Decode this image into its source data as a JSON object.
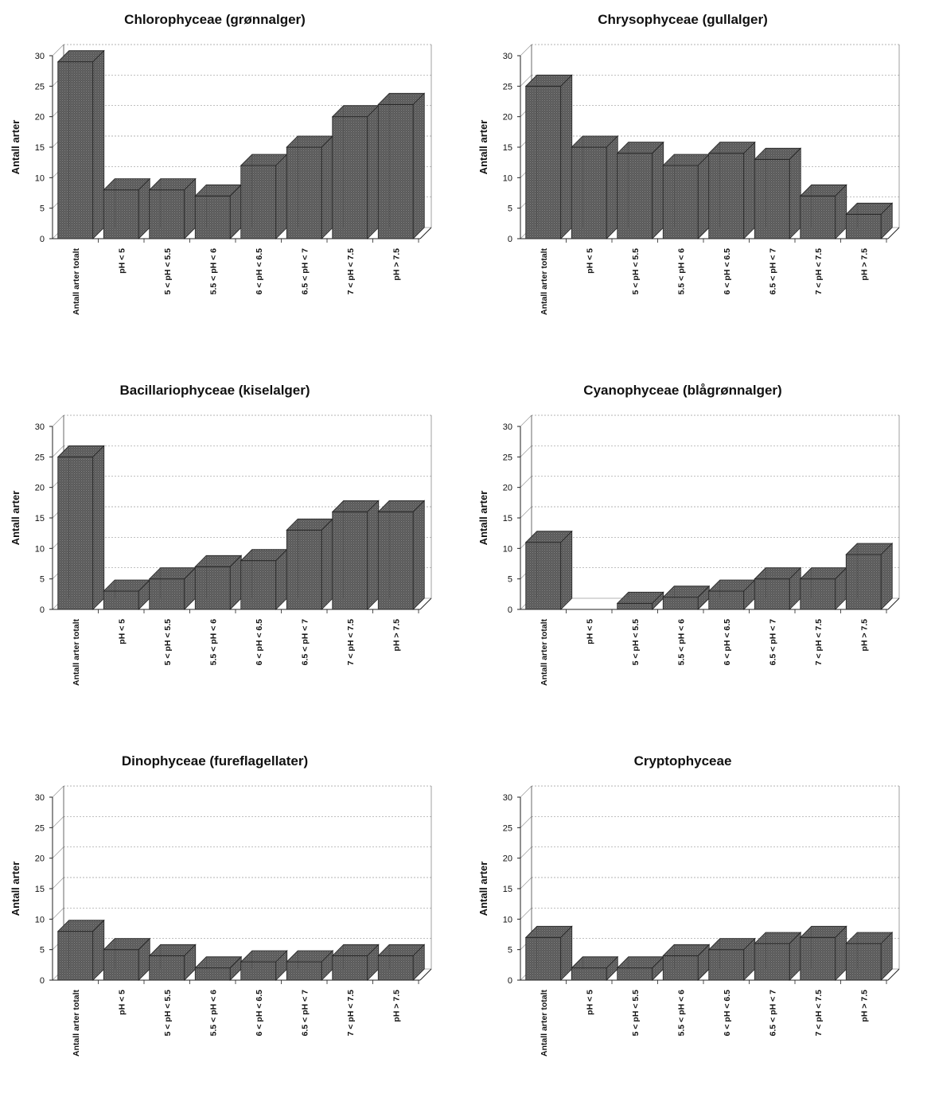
{
  "chart_data": [
    {
      "type": "bar",
      "title": "Chlorophyceae (grønnalger)",
      "ylabel": "Antall arter",
      "xlabel": "",
      "ylim": [
        0,
        30
      ],
      "yticks": [
        0,
        5,
        10,
        15,
        20,
        25,
        30
      ],
      "grid": true,
      "categories": [
        "Antall arter totalt",
        "pH < 5",
        "5 < pH < 5.5",
        "5.5 < pH < 6",
        "6 < pH < 6.5",
        "6.5 < pH < 7",
        "7 < pH < 7.5",
        "pH > 7.5"
      ],
      "values": [
        29,
        8,
        8,
        7,
        12,
        15,
        20,
        22
      ],
      "color": "#5a5a5a"
    },
    {
      "type": "bar",
      "title": "Chrysophyceae (gullalger)",
      "ylabel": "Antall arter",
      "xlabel": "",
      "ylim": [
        0,
        30
      ],
      "yticks": [
        0,
        5,
        10,
        15,
        20,
        25,
        30
      ],
      "grid": true,
      "categories": [
        "Antall arter totalt",
        "pH < 5",
        "5 < pH < 5.5",
        "5.5 < pH < 6",
        "6 < pH < 6.5",
        "6.5 < pH < 7",
        "7 < pH < 7.5",
        "pH > 7.5"
      ],
      "values": [
        25,
        15,
        14,
        12,
        14,
        13,
        7,
        4
      ],
      "color": "#5a5a5a"
    },
    {
      "type": "bar",
      "title": "Bacillariophyceae (kiselalger)",
      "ylabel": "Antall arter",
      "xlabel": "",
      "ylim": [
        0,
        30
      ],
      "yticks": [
        0,
        5,
        10,
        15,
        20,
        25,
        30
      ],
      "grid": true,
      "categories": [
        "Antall arter totalt",
        "pH < 5",
        "5 < pH < 5.5",
        "5.5 < pH < 6",
        "6 < pH < 6.5",
        "6.5 < pH < 7",
        "7 < pH < 7.5",
        "pH > 7.5"
      ],
      "values": [
        25,
        3,
        5,
        7,
        8,
        13,
        16,
        16
      ],
      "color": "#5a5a5a"
    },
    {
      "type": "bar",
      "title": "Cyanophyceae (blågrønnalger)",
      "ylabel": "Antall arter",
      "xlabel": "",
      "ylim": [
        0,
        30
      ],
      "yticks": [
        0,
        5,
        10,
        15,
        20,
        25,
        30
      ],
      "grid": true,
      "categories": [
        "Antall arter totalt",
        "pH < 5",
        "5 < pH < 5.5",
        "5.5 < pH < 6",
        "6 < pH < 6.5",
        "6.5 < pH < 7",
        "7 < pH < 7.5",
        "pH > 7.5"
      ],
      "values": [
        11,
        0,
        1,
        2,
        3,
        5,
        5,
        9
      ],
      "color": "#5a5a5a"
    },
    {
      "type": "bar",
      "title": "Dinophyceae (fureflagellater)",
      "ylabel": "Antall arter",
      "xlabel": "",
      "ylim": [
        0,
        30
      ],
      "yticks": [
        0,
        5,
        10,
        15,
        20,
        25,
        30
      ],
      "grid": true,
      "categories": [
        "Antall arter totalt",
        "pH < 5",
        "5 < pH < 5.5",
        "5.5 < pH < 6",
        "6 < pH < 6.5",
        "6.5 < pH < 7",
        "7 < pH < 7.5",
        "pH > 7.5"
      ],
      "values": [
        8,
        5,
        4,
        2,
        3,
        3,
        4,
        4
      ],
      "color": "#5a5a5a"
    },
    {
      "type": "bar",
      "title": "Cryptophyceae",
      "ylabel": "Antall arter",
      "xlabel": "",
      "ylim": [
        0,
        30
      ],
      "yticks": [
        0,
        5,
        10,
        15,
        20,
        25,
        30
      ],
      "grid": true,
      "categories": [
        "Antall arter totalt",
        "pH < 5",
        "5 < pH < 5.5",
        "5.5 < pH < 6",
        "6 < pH < 6.5",
        "6.5 < pH < 7",
        "7 < pH < 7.5",
        "pH > 7.5"
      ],
      "values": [
        7,
        2,
        2,
        4,
        5,
        6,
        7,
        6
      ],
      "color": "#5a5a5a"
    }
  ]
}
